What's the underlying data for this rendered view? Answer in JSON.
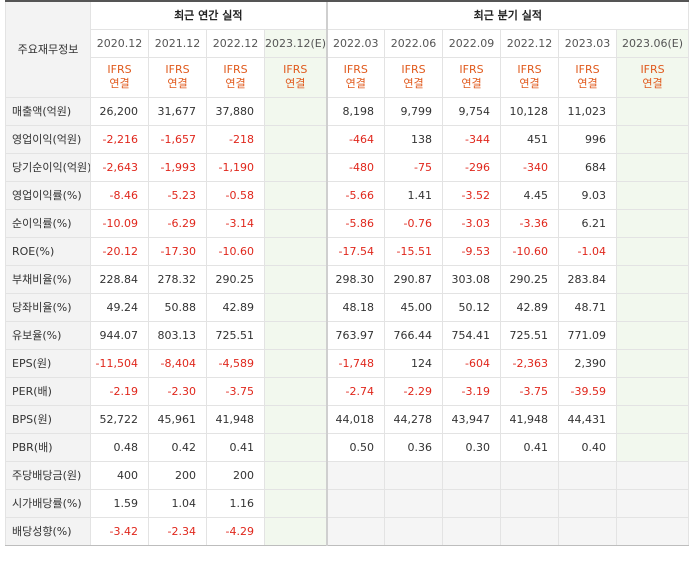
{
  "header": {
    "corner_label": "주요재무정보",
    "annual_group": "최근 연간 실적",
    "quarterly_group": "최근 분기 실적",
    "periods": [
      "2020.12",
      "2021.12",
      "2022.12",
      "2023.12(E)",
      "2022.03",
      "2022.06",
      "2022.09",
      "2022.12",
      "2023.03",
      "2023.06(E)"
    ],
    "basis_line1": "IFRS",
    "basis_line2": "연결"
  },
  "rows": [
    {
      "label": "매출액(억원)",
      "values": [
        "26,200",
        "31,677",
        "37,880",
        "",
        "8,198",
        "9,799",
        "9,754",
        "10,128",
        "11,023",
        ""
      ]
    },
    {
      "label": "영업이익(억원)",
      "values": [
        "-2,216",
        "-1,657",
        "-218",
        "",
        "-464",
        "138",
        "-344",
        "451",
        "996",
        ""
      ]
    },
    {
      "label": "당기순이익(억원)",
      "values": [
        "-2,643",
        "-1,993",
        "-1,190",
        "",
        "-480",
        "-75",
        "-296",
        "-340",
        "684",
        ""
      ]
    },
    {
      "label": "영업이익률(%)",
      "values": [
        "-8.46",
        "-5.23",
        "-0.58",
        "",
        "-5.66",
        "1.41",
        "-3.52",
        "4.45",
        "9.03",
        ""
      ]
    },
    {
      "label": "순이익률(%)",
      "values": [
        "-10.09",
        "-6.29",
        "-3.14",
        "",
        "-5.86",
        "-0.76",
        "-3.03",
        "-3.36",
        "6.21",
        ""
      ]
    },
    {
      "label": "ROE(%)",
      "values": [
        "-20.12",
        "-17.30",
        "-10.60",
        "",
        "-17.54",
        "-15.51",
        "-9.53",
        "-10.60",
        "-1.04",
        ""
      ]
    },
    {
      "label": "부채비율(%)",
      "values": [
        "228.84",
        "278.32",
        "290.25",
        "",
        "298.30",
        "290.87",
        "303.08",
        "290.25",
        "283.84",
        ""
      ]
    },
    {
      "label": "당좌비율(%)",
      "values": [
        "49.24",
        "50.88",
        "42.89",
        "",
        "48.18",
        "45.00",
        "50.12",
        "42.89",
        "48.71",
        ""
      ]
    },
    {
      "label": "유보율(%)",
      "values": [
        "944.07",
        "803.13",
        "725.51",
        "",
        "763.97",
        "766.44",
        "754.41",
        "725.51",
        "771.09",
        ""
      ]
    },
    {
      "label": "EPS(원)",
      "values": [
        "-11,504",
        "-8,404",
        "-4,589",
        "",
        "-1,748",
        "124",
        "-604",
        "-2,363",
        "2,390",
        ""
      ]
    },
    {
      "label": "PER(배)",
      "values": [
        "-2.19",
        "-2.30",
        "-3.75",
        "",
        "-2.74",
        "-2.29",
        "-3.19",
        "-3.75",
        "-39.59",
        ""
      ]
    },
    {
      "label": "BPS(원)",
      "values": [
        "52,722",
        "45,961",
        "41,948",
        "",
        "44,018",
        "44,278",
        "43,947",
        "41,948",
        "44,431",
        ""
      ]
    },
    {
      "label": "PBR(배)",
      "values": [
        "0.48",
        "0.42",
        "0.41",
        "",
        "0.50",
        "0.36",
        "0.30",
        "0.41",
        "0.40",
        ""
      ]
    },
    {
      "label": "주당배당금(원)",
      "values": [
        "400",
        "200",
        "200",
        "",
        "",
        "",
        "",
        "",
        "",
        ""
      ]
    },
    {
      "label": "시가배당률(%)",
      "values": [
        "1.59",
        "1.04",
        "1.16",
        "",
        "",
        "",
        "",
        "",
        "",
        ""
      ]
    },
    {
      "label": "배당성향(%)",
      "values": [
        "-3.42",
        "-2.34",
        "-4.29",
        "",
        "",
        "",
        "",
        "",
        "",
        ""
      ]
    }
  ],
  "colors": {
    "negative": "#e0271c",
    "basis": "#e05a1d",
    "estimate_bg": "#f2f8ee",
    "label_bg": "#f3f3f3"
  }
}
